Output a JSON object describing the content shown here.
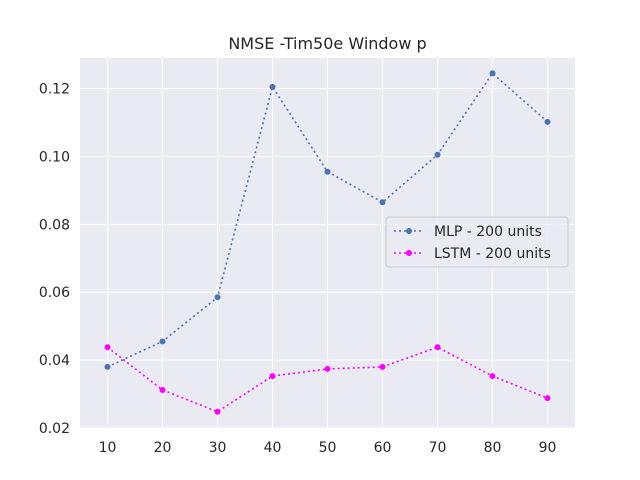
{
  "chart_data": {
    "type": "line",
    "title": "NMSE -Tim50e Window p",
    "xlabel": "",
    "ylabel": "",
    "x": [
      10,
      20,
      30,
      40,
      50,
      60,
      70,
      80,
      90
    ],
    "x_ticks": [
      "10",
      "20",
      "30",
      "40",
      "50",
      "60",
      "70",
      "80",
      "90"
    ],
    "xlim": [
      5,
      95
    ],
    "ylim": [
      0.02,
      0.129
    ],
    "y_ticks": [
      "0.02",
      "0.04",
      "0.06",
      "0.08",
      "0.10",
      "0.12"
    ],
    "grid": true,
    "legend_position": "center-right",
    "series": [
      {
        "name": "MLP - 200 units",
        "color": "#4c72b0",
        "line_style": "dotted",
        "marker": "circle",
        "values": [
          0.038,
          0.0455,
          0.0585,
          0.1205,
          0.0955,
          0.0865,
          0.1005,
          0.1245,
          0.1102
        ]
      },
      {
        "name": "LSTM - 200 units",
        "color": "#ff00ff",
        "line_style": "dotted",
        "marker": "circle",
        "values": [
          0.0438,
          0.0312,
          0.0248,
          0.0353,
          0.0374,
          0.038,
          0.0438,
          0.0353,
          0.0288
        ]
      }
    ]
  }
}
